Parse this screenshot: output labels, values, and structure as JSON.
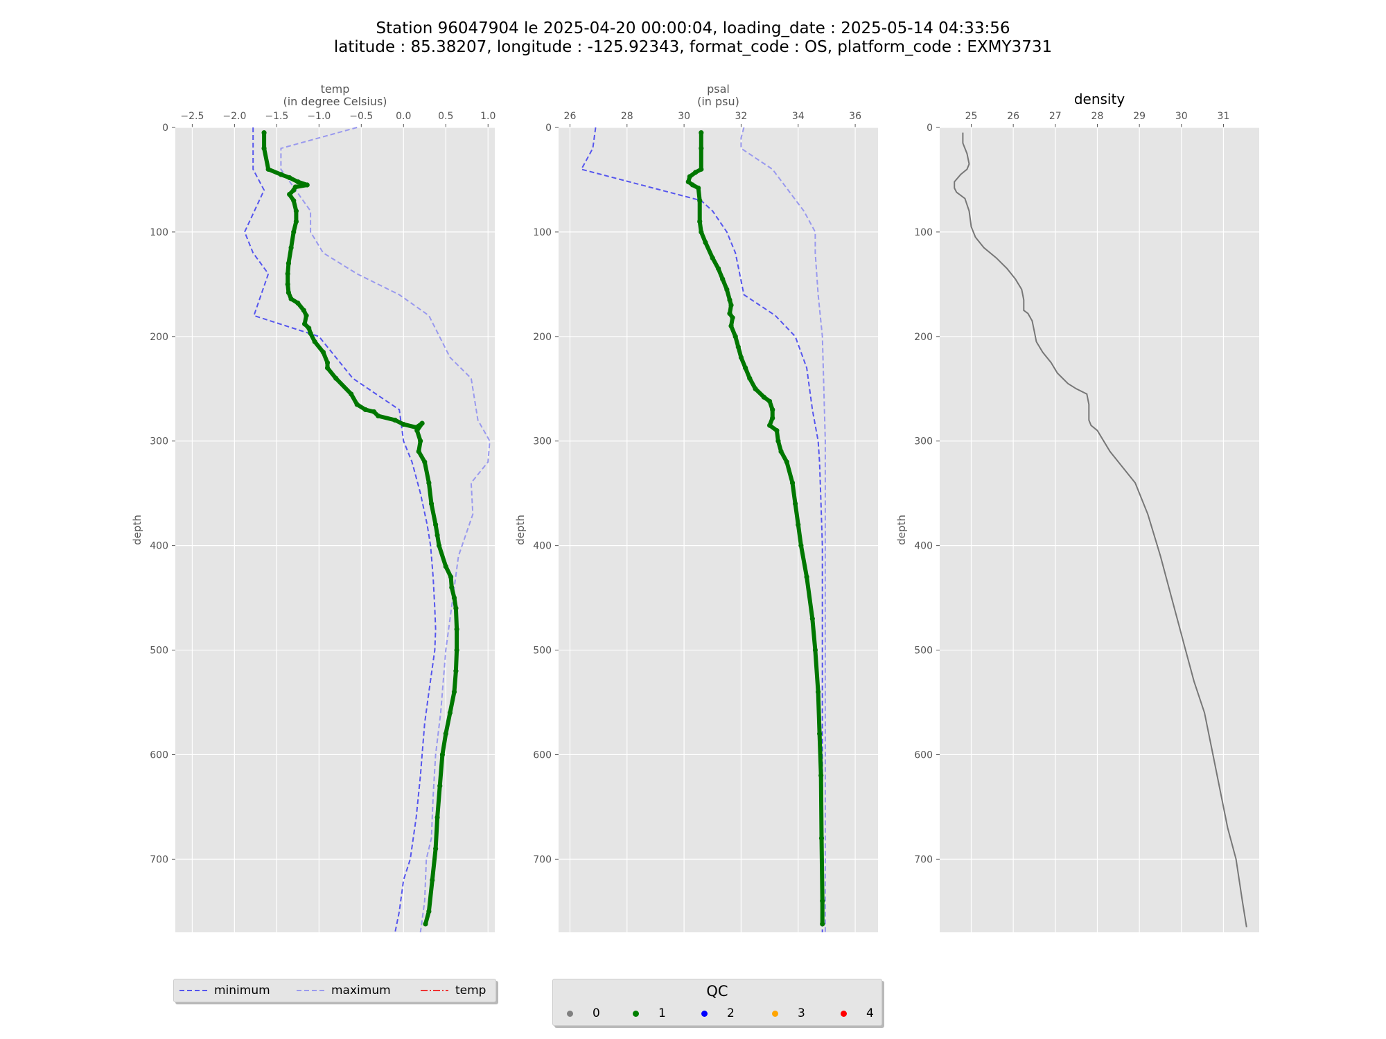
{
  "title": {
    "line1": "Station 96047904 le 2025-04-20 00:00:04, loading_date : 2025-05-14 04:33:56",
    "line2": "latitude : 85.38207, longitude : -125.92343, format_code : OS, platform_code : EXMY3731"
  },
  "colors": {
    "axes_bg": "#e5e5e5",
    "grid": "#ffffff",
    "minimum": "#5555ee",
    "maximum": "#9999ee",
    "profile": "#007700",
    "density": "#777777",
    "tick_text": "#555555"
  },
  "chart_data": [
    {
      "type": "line",
      "title": "temp",
      "subtitle": "(in degree Celsius)",
      "ylabel": "depth",
      "xlim": [
        -2.7,
        1.08
      ],
      "ylim": [
        770,
        0
      ],
      "xticks": [
        "−2.5",
        "−2.0",
        "−1.5",
        "−1.0",
        "−0.5",
        "0.0",
        "0.5",
        "1.0"
      ],
      "xtick_values": [
        -2.5,
        -2.0,
        -1.5,
        -1.0,
        -0.5,
        0.0,
        0.5,
        1.0
      ],
      "yticks": [
        "0",
        "100",
        "200",
        "300",
        "400",
        "500",
        "600",
        "700"
      ],
      "ytick_values": [
        0,
        100,
        200,
        300,
        400,
        500,
        600,
        700
      ],
      "grid": true,
      "series": [
        {
          "name": "minimum",
          "style": "dashed",
          "x": [
            -1.78,
            -1.78,
            -1.65,
            -1.88,
            -1.78,
            -1.6,
            -1.77,
            -1.0,
            -0.6,
            -0.05,
            0.0,
            0.1,
            0.2,
            0.28,
            0.32,
            0.35,
            0.37,
            0.38,
            0.37,
            0.3,
            0.25,
            0.22,
            0.2,
            0.15,
            0.08,
            0.0,
            -0.05,
            -0.1
          ],
          "y": [
            0,
            40,
            60,
            100,
            120,
            140,
            180,
            200,
            240,
            270,
            300,
            320,
            350,
            380,
            400,
            430,
            460,
            480,
            500,
            540,
            570,
            600,
            620,
            660,
            700,
            720,
            750,
            770
          ]
        },
        {
          "name": "maximum",
          "style": "dashed",
          "x": [
            -0.55,
            -1.45,
            -1.45,
            -1.1,
            -1.1,
            -0.95,
            -0.55,
            -0.05,
            0.3,
            0.55,
            0.8,
            0.88,
            1.02,
            1.0,
            0.8,
            0.82,
            0.65,
            0.6,
            0.5,
            0.44,
            0.38,
            0.35,
            0.33,
            0.27,
            0.25,
            0.2
          ],
          "y": [
            0,
            20,
            40,
            80,
            100,
            120,
            140,
            160,
            180,
            220,
            240,
            280,
            300,
            320,
            340,
            370,
            410,
            440,
            500,
            560,
            600,
            640,
            680,
            700,
            740,
            770
          ]
        },
        {
          "name": "temp",
          "qc": "1",
          "style": "solid-dots",
          "x": [
            -1.65,
            -1.65,
            -1.6,
            -1.45,
            -1.35,
            -1.25,
            -1.14,
            -1.28,
            -1.3,
            -1.35,
            -1.3,
            -1.27,
            -1.27,
            -1.3,
            -1.33,
            -1.36,
            -1.37,
            -1.37,
            -1.36,
            -1.33,
            -1.25,
            -1.18,
            -1.15,
            -1.17,
            -1.12,
            -1.1,
            -1.05,
            -0.95,
            -0.9,
            -0.9,
            -0.8,
            -0.62,
            -0.55,
            -0.45,
            -0.35,
            -0.3,
            -0.1,
            0.0,
            0.15,
            0.22,
            0.16,
            0.2,
            0.18,
            0.25,
            0.3,
            0.33,
            0.38,
            0.4,
            0.42,
            0.5,
            0.56,
            0.57,
            0.6,
            0.62,
            0.63,
            0.63,
            0.62,
            0.6,
            0.55,
            0.5,
            0.46,
            0.43,
            0.4,
            0.38,
            0.34,
            0.3,
            0.26
          ],
          "y": [
            5,
            20,
            40,
            45,
            48,
            52,
            55,
            57,
            60,
            64,
            70,
            80,
            90,
            100,
            115,
            130,
            140,
            150,
            158,
            164,
            168,
            175,
            180,
            188,
            192,
            197,
            205,
            215,
            225,
            230,
            240,
            255,
            265,
            270,
            272,
            276,
            280,
            284,
            287,
            283,
            290,
            300,
            310,
            320,
            340,
            360,
            380,
            390,
            400,
            420,
            430,
            440,
            450,
            460,
            480,
            500,
            520,
            540,
            560,
            580,
            600,
            630,
            660,
            690,
            720,
            750,
            762
          ]
        }
      ]
    },
    {
      "type": "line",
      "title": "psal",
      "subtitle": "(in psu)",
      "ylabel": "depth",
      "xlim": [
        25.6,
        36.8
      ],
      "ylim": [
        770,
        0
      ],
      "xticks": [
        "26",
        "28",
        "30",
        "32",
        "34",
        "36"
      ],
      "xtick_values": [
        26,
        28,
        30,
        32,
        34,
        36
      ],
      "yticks": [
        "0",
        "100",
        "200",
        "300",
        "400",
        "500",
        "600",
        "700"
      ],
      "ytick_values": [
        0,
        100,
        200,
        300,
        400,
        500,
        600,
        700
      ],
      "grid": true,
      "series": [
        {
          "name": "minimum",
          "style": "dashed",
          "x": [
            26.9,
            26.8,
            26.4,
            30.6,
            31.0,
            31.5,
            31.8,
            32.1,
            33.2,
            33.9,
            34.3,
            34.5,
            34.7,
            34.75,
            34.8,
            34.85,
            34.85,
            34.85,
            34.85,
            34.85,
            34.85
          ],
          "y": [
            0,
            20,
            40,
            70,
            80,
            100,
            120,
            160,
            180,
            200,
            230,
            270,
            300,
            320,
            360,
            400,
            450,
            500,
            600,
            700,
            770
          ]
        },
        {
          "name": "maximum",
          "style": "dashed",
          "x": [
            32.1,
            32.0,
            32.0,
            33.1,
            34.2,
            34.6,
            34.6,
            34.7,
            34.85,
            34.9,
            34.95,
            34.95,
            34.95,
            34.95,
            34.95,
            34.95
          ],
          "y": [
            0,
            10,
            20,
            40,
            80,
            100,
            120,
            160,
            200,
            250,
            300,
            400,
            500,
            600,
            700,
            770
          ]
        },
        {
          "name": "psal",
          "qc": "1",
          "style": "solid-dots",
          "x": [
            30.6,
            30.6,
            30.6,
            30.4,
            30.2,
            30.15,
            30.3,
            30.5,
            30.55,
            30.55,
            30.6,
            30.75,
            31.0,
            31.2,
            31.35,
            31.5,
            31.6,
            31.65,
            31.6,
            31.7,
            31.65,
            31.8,
            31.9,
            32.0,
            32.15,
            32.3,
            32.5,
            32.8,
            33.0,
            33.1,
            33.1,
            33.0,
            33.25,
            33.3,
            33.4,
            33.6,
            33.8,
            33.9,
            34.0,
            34.1,
            34.3,
            34.5,
            34.6,
            34.7,
            34.75,
            34.8,
            34.82,
            34.85,
            34.85
          ],
          "y": [
            5,
            20,
            40,
            43,
            47,
            52,
            55,
            58,
            70,
            90,
            100,
            110,
            125,
            135,
            145,
            155,
            165,
            170,
            178,
            182,
            190,
            200,
            210,
            220,
            230,
            240,
            250,
            258,
            262,
            270,
            278,
            285,
            290,
            300,
            310,
            320,
            340,
            360,
            380,
            400,
            430,
            470,
            500,
            540,
            580,
            620,
            680,
            740,
            762
          ]
        }
      ]
    },
    {
      "type": "line",
      "title": "density",
      "ylabel": "depth",
      "xlim": [
        24.25,
        31.85
      ],
      "ylim": [
        770,
        0
      ],
      "xticks": [
        "25",
        "26",
        "27",
        "28",
        "29",
        "30",
        "31"
      ],
      "xtick_values": [
        25,
        26,
        27,
        28,
        29,
        30,
        31
      ],
      "yticks": [
        "0",
        "100",
        "200",
        "300",
        "400",
        "500",
        "600",
        "700"
      ],
      "ytick_values": [
        0,
        100,
        200,
        300,
        400,
        500,
        600,
        700
      ],
      "grid": true,
      "series": [
        {
          "name": "density",
          "style": "solid",
          "x": [
            24.8,
            24.8,
            24.9,
            24.95,
            24.9,
            24.75,
            24.6,
            24.6,
            24.65,
            24.85,
            24.95,
            25.0,
            25.1,
            25.3,
            25.6,
            25.85,
            26.05,
            26.2,
            26.25,
            26.25,
            26.35,
            26.45,
            26.5,
            26.55,
            26.7,
            26.9,
            27.05,
            27.3,
            27.5,
            27.75,
            27.8,
            27.8,
            27.85,
            28.0,
            28.15,
            28.3,
            28.6,
            28.9,
            29.05,
            29.2,
            29.35,
            29.5,
            29.7,
            29.9,
            30.1,
            30.3,
            30.55,
            30.75,
            30.95,
            31.1,
            31.3,
            31.45,
            31.55
          ],
          "y": [
            5,
            15,
            25,
            35,
            40,
            45,
            52,
            58,
            62,
            68,
            80,
            95,
            105,
            115,
            125,
            135,
            145,
            155,
            165,
            175,
            178,
            185,
            195,
            205,
            215,
            225,
            235,
            245,
            250,
            255,
            265,
            280,
            285,
            290,
            300,
            310,
            325,
            340,
            355,
            370,
            390,
            410,
            440,
            470,
            500,
            530,
            560,
            600,
            640,
            670,
            700,
            740,
            765
          ]
        }
      ]
    }
  ],
  "legend_lines": {
    "items": [
      {
        "label": "minimum"
      },
      {
        "label": "maximum"
      },
      {
        "label": "temp"
      }
    ]
  },
  "legend_qc": {
    "title": "QC",
    "items": [
      {
        "label": "0",
        "color": "#808080"
      },
      {
        "label": "1",
        "color": "#008000"
      },
      {
        "label": "2",
        "color": "#0000ff"
      },
      {
        "label": "3",
        "color": "#ffa500"
      },
      {
        "label": "4",
        "color": "#ff0000"
      }
    ]
  }
}
